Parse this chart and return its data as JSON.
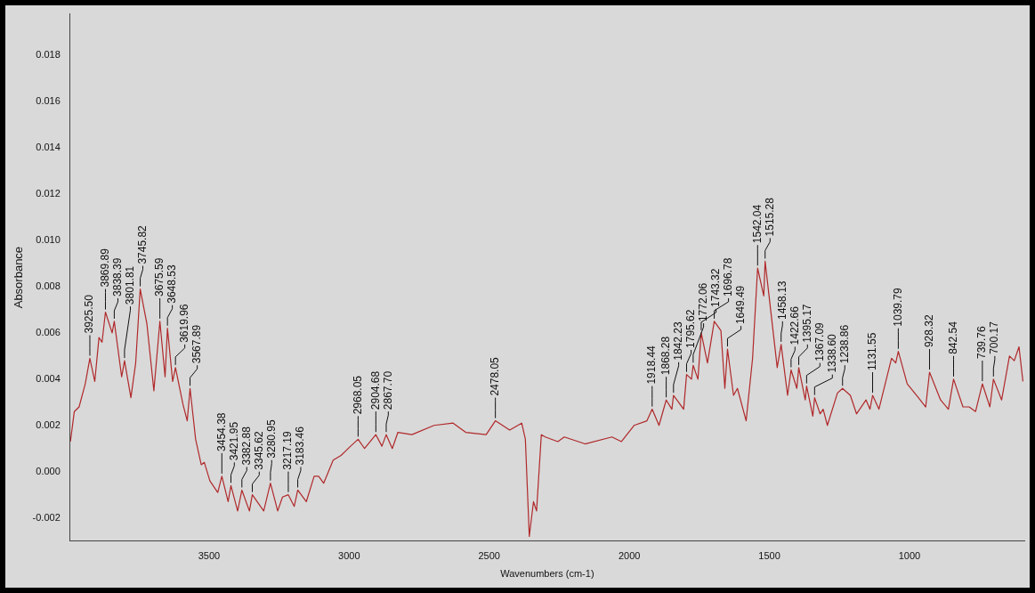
{
  "chart_data": {
    "type": "line",
    "xlabel": "Wavenumbers (cm-1)",
    "ylabel": "Absorbance",
    "grid": false,
    "legend": false,
    "marker": "none",
    "line_style": "solid",
    "xlim": [
      3996,
      590
    ],
    "xticks": [
      3500,
      3000,
      2500,
      2000,
      1500,
      1000
    ],
    "ylim": [
      -0.003,
      0.0198
    ],
    "yticks": [
      {
        "value": -0.002,
        "label": "-0.002"
      },
      {
        "value": 0,
        "label": "0.000"
      },
      {
        "value": 0.002,
        "label": "0.002"
      },
      {
        "value": 0.004,
        "label": "0.004"
      },
      {
        "value": 0.006,
        "label": "0.006"
      },
      {
        "value": 0.008,
        "label": "0.008"
      },
      {
        "value": 0.01,
        "label": "0.010"
      },
      {
        "value": 0.012,
        "label": "0.012"
      },
      {
        "value": 0.014,
        "label": "0.014"
      },
      {
        "value": 0.016,
        "label": "0.016"
      },
      {
        "value": 0.018,
        "label": "0.018"
      }
    ],
    "series": [
      {
        "color": "#b0282a",
        "x": [
          3995,
          3981,
          3964,
          3942,
          3925.5,
          3908,
          3893,
          3882,
          3869.89,
          3846,
          3838.39,
          3812,
          3801.81,
          3779,
          3762,
          3745.82,
          3722,
          3697,
          3675.59,
          3657,
          3648.53,
          3630,
          3619.96,
          3593,
          3578,
          3567.89,
          3548,
          3528,
          3517,
          3497,
          3469,
          3454.38,
          3432,
          3421.95,
          3398,
          3382.88,
          3356,
          3345.62,
          3305,
          3280.95,
          3255,
          3238,
          3217.19,
          3196,
          3183.46,
          3153,
          3125,
          3109,
          3091,
          3057,
          3029,
          2995,
          2968.05,
          2945,
          2904.68,
          2883,
          2867.7,
          2846,
          2826,
          2776,
          2697,
          2629,
          2584,
          2511,
          2478.05,
          2427,
          2384,
          2371,
          2357,
          2342,
          2331,
          2314,
          2300,
          2255,
          2232,
          2158,
          2062,
          2028,
          1983,
          1937,
          1918.44,
          1894,
          1868.28,
          1848,
          1842.23,
          1806,
          1795.62,
          1778,
          1772.06,
          1755,
          1743.32,
          1721,
          1696.78,
          1673,
          1659,
          1649.49,
          1628,
          1614,
          1583,
          1560,
          1542.04,
          1520,
          1515.28,
          1472,
          1458.13,
          1435,
          1422.66,
          1402,
          1395.17,
          1372,
          1367.09,
          1345,
          1338.6,
          1319,
          1308,
          1293,
          1257,
          1238.86,
          1211,
          1189,
          1155,
          1141,
          1131.55,
          1109,
          1064,
          1049,
          1039.79,
          1008,
          968,
          942,
          928.32,
          889,
          861,
          842.54,
          809,
          787,
          764,
          739.76,
          713,
          700.17,
          671,
          643,
          626,
          609,
          595
        ],
        "values": [
          0.0013,
          0.0026,
          0.0028,
          0.0038,
          0.0049,
          0.0039,
          0.0058,
          0.0056,
          0.0069,
          0.006,
          0.0065,
          0.0041,
          0.0048,
          0.0032,
          0.0047,
          0.0079,
          0.0064,
          0.0035,
          0.0065,
          0.0041,
          0.0062,
          0.0039,
          0.0045,
          0.0029,
          0.0022,
          0.0036,
          0.0014,
          0.0003,
          0.0004,
          -0.0004,
          -0.0009,
          -0.0002,
          -0.0013,
          -0.0006,
          -0.0017,
          -0.0008,
          -0.0017,
          -0.001,
          -0.0017,
          -0.0005,
          -0.0017,
          -0.0011,
          -0.001,
          -0.0015,
          -0.0008,
          -0.0013,
          -0.0002,
          -0.0002,
          -0.0005,
          0.0005,
          0.0007,
          0.0011,
          0.0014,
          0.001,
          0.0016,
          0.0011,
          0.0016,
          0.001,
          0.0017,
          0.0016,
          0.002,
          0.0021,
          0.0017,
          0.0016,
          0.0022,
          0.0018,
          0.0021,
          0.0014,
          -0.0028,
          -0.0013,
          -0.0017,
          0.0016,
          0.0015,
          0.0013,
          0.0015,
          0.0012,
          0.0015,
          0.0013,
          0.002,
          0.0022,
          0.0027,
          0.002,
          0.0031,
          0.0027,
          0.0033,
          0.0027,
          0.0042,
          0.004,
          0.0046,
          0.004,
          0.006,
          0.0047,
          0.0065,
          0.0061,
          0.0036,
          0.0053,
          0.0033,
          0.0036,
          0.0022,
          0.0049,
          0.0088,
          0.0076,
          0.0091,
          0.0045,
          0.0055,
          0.0033,
          0.0044,
          0.0036,
          0.0045,
          0.0031,
          0.0037,
          0.0024,
          0.0032,
          0.0025,
          0.0027,
          0.002,
          0.0034,
          0.0036,
          0.0033,
          0.0025,
          0.0031,
          0.0027,
          0.0033,
          0.0027,
          0.0049,
          0.0047,
          0.0052,
          0.0038,
          0.0032,
          0.0028,
          0.0043,
          0.0031,
          0.0027,
          0.004,
          0.0028,
          0.0028,
          0.0026,
          0.0038,
          0.0028,
          0.004,
          0.0031,
          0.005,
          0.0048,
          0.0054,
          0.0039
        ]
      }
    ],
    "annotations": [
      {
        "text": "3925.50",
        "x": 3925.5,
        "y": 0.0049
      },
      {
        "text": "3869.89",
        "x": 3869.89,
        "y": 0.0069
      },
      {
        "text": "3838.39",
        "x": 3838.39,
        "y": 0.0065
      },
      {
        "text": "3801.81",
        "x": 3801.81,
        "y": 0.0048
      },
      {
        "text": "3745.82",
        "x": 3745.82,
        "y": 0.0079
      },
      {
        "text": "3675.59",
        "x": 3675.59,
        "y": 0.0065
      },
      {
        "text": "3648.53",
        "x": 3648.53,
        "y": 0.0062
      },
      {
        "text": "3619.96",
        "x": 3619.96,
        "y": 0.0045
      },
      {
        "text": "3567.89",
        "x": 3567.89,
        "y": 0.0036
      },
      {
        "text": "3454.38",
        "x": 3454.38,
        "y": -0.0002
      },
      {
        "text": "3421.95",
        "x": 3421.95,
        "y": -0.0006
      },
      {
        "text": "3382.88",
        "x": 3382.88,
        "y": -0.0008
      },
      {
        "text": "3345.62",
        "x": 3345.62,
        "y": -0.001
      },
      {
        "text": "3280.95",
        "x": 3280.95,
        "y": -0.0005
      },
      {
        "text": "3217.19",
        "x": 3217.19,
        "y": -0.001
      },
      {
        "text": "3183.46",
        "x": 3183.46,
        "y": -0.0008
      },
      {
        "text": "2968.05",
        "x": 2968.05,
        "y": 0.0014
      },
      {
        "text": "2904.68",
        "x": 2904.68,
        "y": 0.0016
      },
      {
        "text": "2867.70",
        "x": 2867.7,
        "y": 0.0016
      },
      {
        "text": "2478.05",
        "x": 2478.05,
        "y": 0.0022
      },
      {
        "text": "1918.44",
        "x": 1918.44,
        "y": 0.0027
      },
      {
        "text": "1868.28",
        "x": 1868.28,
        "y": 0.0031
      },
      {
        "text": "1842.23",
        "x": 1842.23,
        "y": 0.0033
      },
      {
        "text": "1795.62",
        "x": 1795.62,
        "y": 0.0042
      },
      {
        "text": "1772.06",
        "x": 1772.06,
        "y": 0.0046
      },
      {
        "text": "1743.32",
        "x": 1743.32,
        "y": 0.006
      },
      {
        "text": "1696.78",
        "x": 1696.78,
        "y": 0.0065
      },
      {
        "text": "1649.49",
        "x": 1649.49,
        "y": 0.0053
      },
      {
        "text": "1542.04",
        "x": 1542.04,
        "y": 0.0088
      },
      {
        "text": "1515.28",
        "x": 1515.28,
        "y": 0.0091
      },
      {
        "text": "1458.13",
        "x": 1458.13,
        "y": 0.0055
      },
      {
        "text": "1422.66",
        "x": 1422.66,
        "y": 0.0044
      },
      {
        "text": "1395.17",
        "x": 1395.17,
        "y": 0.0045
      },
      {
        "text": "1367.09",
        "x": 1367.09,
        "y": 0.0037
      },
      {
        "text": "1338.60",
        "x": 1338.6,
        "y": 0.0032
      },
      {
        "text": "1238.86",
        "x": 1238.86,
        "y": 0.0036
      },
      {
        "text": "1131.55",
        "x": 1131.55,
        "y": 0.0033
      },
      {
        "text": "1039.79",
        "x": 1039.79,
        "y": 0.0052
      },
      {
        "text": "928.32",
        "x": 928.32,
        "y": 0.0043
      },
      {
        "text": "842.54",
        "x": 842.54,
        "y": 0.004
      },
      {
        "text": "739.76",
        "x": 739.76,
        "y": 0.0038
      },
      {
        "text": "700.17",
        "x": 700.17,
        "y": 0.004
      }
    ]
  }
}
